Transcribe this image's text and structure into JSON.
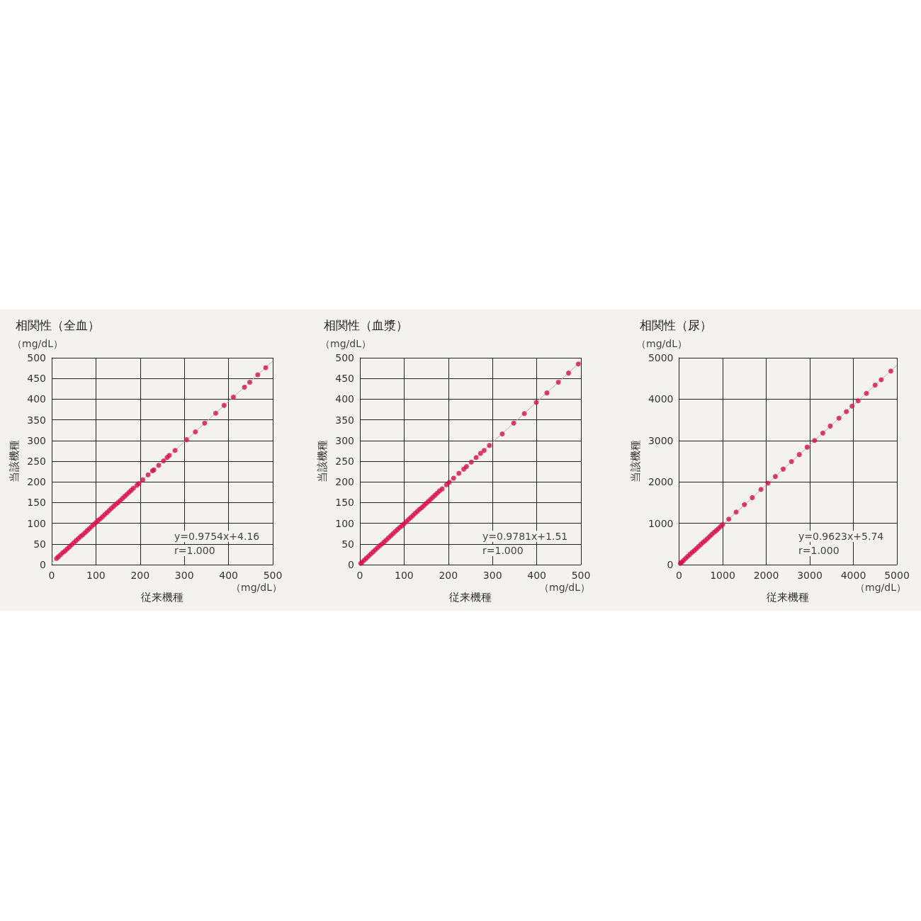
{
  "chart_data": [
    {
      "type": "scatter",
      "title": "相関性（全血）",
      "xlabel": "従来機種",
      "ylabel": "当該機種",
      "annotations": [
        "（mg/dL）",
        "（mg/dL）",
        "y=0.9754x+4.16",
        "r=1.000"
      ],
      "xlim": [
        0,
        500
      ],
      "ylim": [
        0,
        500
      ],
      "xticks": [
        0,
        100,
        200,
        300,
        400,
        500
      ],
      "yticks": [
        0,
        50,
        100,
        150,
        200,
        250,
        300,
        350,
        400,
        450,
        500
      ],
      "grid": true,
      "marker": "circle",
      "series": [
        {
          "color": "#dc0a4a",
          "x": [
            484,
            466,
            448,
            436,
            411,
            390,
            371,
            346,
            325,
            305,
            279,
            266,
            261,
            253,
            242,
            231,
            228,
            218,
            206,
            197,
            193,
            185,
            180,
            175,
            170,
            165,
            160,
            155,
            150,
            145,
            140,
            135,
            130,
            125,
            120,
            115,
            110,
            105,
            100,
            95,
            90,
            85,
            80,
            75,
            70,
            65,
            60,
            55,
            50,
            45,
            40,
            35,
            30,
            25,
            20,
            15,
            11
          ],
          "values": [
            476,
            459,
            441,
            429,
            405,
            385,
            366,
            342,
            321,
            302,
            276,
            264,
            259,
            251,
            240,
            229,
            227,
            217,
            205,
            196,
            192,
            185,
            180,
            175,
            170,
            165,
            160,
            155,
            150,
            146,
            141,
            136,
            131,
            126,
            121,
            116,
            111,
            107,
            102,
            97,
            92,
            87,
            82,
            77,
            72,
            68,
            63,
            58,
            53,
            48,
            43,
            38,
            33,
            29,
            24,
            19,
            15
          ]
        },
        {
          "type": "line",
          "color": "#b4b4b4",
          "marker": "none",
          "x": [
            0,
            500
          ],
          "values": [
            4,
            492
          ]
        }
      ]
    },
    {
      "type": "scatter",
      "title": "相関性（血漿）",
      "xlabel": "従来機種",
      "ylabel": "当該機種",
      "annotations": [
        "（mg/dL）",
        "（mg/dL）",
        "y=0.9781x+1.51",
        "r=1.000"
      ],
      "xlim": [
        0,
        500
      ],
      "ylim": [
        0,
        500
      ],
      "xticks": [
        0,
        100,
        200,
        300,
        400,
        500
      ],
      "yticks": [
        0,
        50,
        100,
        150,
        200,
        250,
        300,
        350,
        400,
        450,
        500
      ],
      "grid": true,
      "marker": "circle",
      "series": [
        {
          "color": "#dc0a4a",
          "x": [
            494,
            472,
            449,
            423,
            399,
            372,
            348,
            322,
            293,
            281,
            273,
            263,
            252,
            241,
            235,
            224,
            212,
            202,
            196,
            186,
            180,
            175,
            170,
            165,
            160,
            155,
            150,
            145,
            140,
            135,
            130,
            125,
            120,
            115,
            110,
            105,
            100,
            95,
            90,
            85,
            80,
            75,
            70,
            65,
            60,
            55,
            50,
            45,
            40,
            35,
            30,
            25,
            20,
            15,
            10,
            5,
            2
          ],
          "values": [
            485,
            463,
            441,
            415,
            392,
            365,
            342,
            316,
            288,
            276,
            269,
            259,
            248,
            237,
            231,
            221,
            209,
            199,
            193,
            183,
            178,
            173,
            168,
            163,
            158,
            153,
            148,
            143,
            138,
            134,
            129,
            124,
            119,
            114,
            109,
            104,
            99,
            94,
            90,
            85,
            80,
            75,
            70,
            65,
            60,
            55,
            50,
            46,
            41,
            36,
            31,
            26,
            21,
            16,
            11,
            6,
            3
          ]
        },
        {
          "type": "line",
          "color": "#b4b4b4",
          "marker": "none",
          "x": [
            0,
            500
          ],
          "values": [
            2,
            491
          ]
        }
      ]
    },
    {
      "type": "scatter",
      "title": "相関性（尿）",
      "xlabel": "従来機種",
      "ylabel": "当該機種",
      "annotations": [
        "（mg/dL）",
        "（mg/dL）",
        "y=0.9623x+5.74",
        "r=1.000"
      ],
      "xlim": [
        0,
        5000
      ],
      "ylim": [
        0,
        5000
      ],
      "xticks": [
        0,
        1000,
        2000,
        3000,
        4000,
        5000
      ],
      "yticks": [
        0,
        1000,
        2000,
        3000,
        4000,
        5000
      ],
      "grid": true,
      "marker": "circle",
      "series": [
        {
          "color": "#dc0a4a",
          "x": [
            4860,
            4640,
            4500,
            4300,
            4110,
            3970,
            3840,
            3670,
            3470,
            3300,
            3110,
            2940,
            2760,
            2580,
            2390,
            2210,
            2040,
            1880,
            1680,
            1500,
            1310,
            1140,
            1000,
            950,
            900,
            850,
            800,
            750,
            700,
            650,
            600,
            550,
            500,
            450,
            400,
            350,
            300,
            250,
            200,
            150,
            100,
            60,
            30
          ],
          "values": [
            4680,
            4470,
            4340,
            4140,
            3960,
            3830,
            3700,
            3540,
            3350,
            3180,
            3000,
            2840,
            2660,
            2490,
            2310,
            2130,
            1970,
            1820,
            1620,
            1450,
            1270,
            1100,
            970,
            920,
            870,
            820,
            780,
            730,
            680,
            630,
            580,
            540,
            490,
            440,
            390,
            340,
            300,
            250,
            200,
            150,
            100,
            60,
            30
          ]
        },
        {
          "type": "line",
          "color": "#b4b4b4",
          "marker": "none",
          "x": [
            0,
            5000
          ],
          "values": [
            0,
            4820
          ]
        }
      ]
    }
  ]
}
